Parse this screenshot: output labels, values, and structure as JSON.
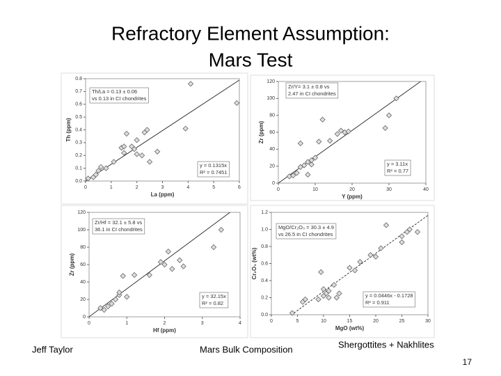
{
  "slide": {
    "title": [
      "Refractory Element Assumption:",
      "Mars Test"
    ],
    "footer_left": "Jeff Taylor",
    "footer_center": "Mars Bulk Composition",
    "footer_right": "Shergottites + Nakhlites",
    "page_number": "17"
  },
  "chart_data": [
    {
      "type": "scatter",
      "xlabel": "La (ppm)",
      "ylabel": "Th (ppm)",
      "x": [
        0.1,
        0.3,
        0.4,
        0.5,
        0.6,
        0.8,
        1.1,
        1.4,
        1.5,
        1.5,
        1.6,
        1.8,
        1.9,
        2.0,
        2.0,
        2.2,
        2.3,
        2.4,
        2.5,
        2.8,
        3.9,
        4.1,
        5.9
      ],
      "values": [
        0.02,
        0.03,
        0.05,
        0.08,
        0.11,
        0.1,
        0.15,
        0.26,
        0.27,
        0.22,
        0.37,
        0.27,
        0.25,
        0.32,
        0.21,
        0.2,
        0.38,
        0.4,
        0.15,
        0.23,
        0.41,
        0.76,
        0.61
      ],
      "xlim": [
        0,
        6
      ],
      "xticks": [
        0,
        1,
        2,
        3,
        4,
        5,
        6
      ],
      "ylim": [
        0,
        0.8
      ],
      "yticks": [
        {
          "value": 0,
          "label": "0.0"
        },
        0.1,
        0.2,
        0.3,
        0.4,
        0.5,
        0.6,
        0.7,
        0.8
      ],
      "annotation": [
        "Th/La = 0.13 ± 0.06",
        "vs 0.13 in CI chondrites"
      ],
      "fit_label": [
        "y = 0.1315x",
        "R² = 0.7451"
      ],
      "trendline": {
        "slope": 0.1315,
        "dashed": false
      }
    },
    {
      "type": "scatter",
      "xlabel": "Y (ppm)",
      "ylabel": "Zr (ppm)",
      "x": [
        3,
        4,
        5,
        6,
        6,
        7,
        8,
        8,
        9,
        9,
        10,
        11,
        12,
        14,
        16,
        17,
        18,
        19,
        29,
        30,
        32
      ],
      "values": [
        8,
        9,
        12,
        19,
        47,
        21,
        25,
        10,
        22,
        27,
        30,
        49,
        75,
        50,
        58,
        62,
        60,
        61,
        65,
        80,
        100
      ],
      "xlim": [
        0,
        40
      ],
      "xticks": [
        0,
        10,
        20,
        30,
        40
      ],
      "ylim": [
        0,
        120
      ],
      "yticks": [
        0,
        20,
        40,
        60,
        80,
        100,
        120
      ],
      "annotation": [
        "Zr/Y= 3.1 ± 0.8 vs",
        "2.47 in CI chondrites"
      ],
      "fit_label": [
        "y = 3.11x",
        "R² = 0.77"
      ],
      "trendline": {
        "slope": 3.11,
        "dashed": false
      }
    },
    {
      "type": "scatter",
      "xlabel": "Hf (ppm)",
      "ylabel": "Zr (ppm)",
      "x": [
        0.3,
        0.4,
        0.5,
        0.6,
        0.7,
        0.8,
        0.8,
        0.9,
        1.0,
        1.2,
        1.6,
        1.9,
        2.0,
        2.1,
        2.2,
        2.4,
        2.5,
        3.3,
        3.5
      ],
      "values": [
        10,
        8,
        12,
        15,
        20,
        25,
        28,
        47,
        23,
        48,
        48,
        63,
        60,
        75,
        55,
        65,
        58,
        80,
        100
      ],
      "xlim": [
        0,
        4
      ],
      "xticks": [
        0,
        1,
        2,
        3,
        4
      ],
      "ylim": [
        0,
        120
      ],
      "yticks": [
        0,
        20,
        40,
        60,
        80,
        100,
        120
      ],
      "annotation": [
        "Zr/Hf = 32.1 ± 5.8 vs",
        "36.1 in CI chondrites"
      ],
      "fit_label": [
        "y = 32.15x",
        "R² = 0.82"
      ],
      "trendline": {
        "slope": 32.15,
        "dashed": false
      }
    },
    {
      "type": "scatter",
      "xlabel": "MgO (wt%)",
      "ylabel": "Cr₂O₃ (wt%)",
      "x": [
        4,
        6,
        6.5,
        9,
        9.5,
        10,
        10,
        10.5,
        11,
        11,
        12,
        12.5,
        13,
        15,
        16,
        17,
        19,
        20,
        21,
        22,
        25,
        25,
        26,
        26.5,
        28
      ],
      "values": [
        0.02,
        0.15,
        0.18,
        0.18,
        0.5,
        0.22,
        0.3,
        0.25,
        0.28,
        0.2,
        0.35,
        0.2,
        0.25,
        0.55,
        0.52,
        0.62,
        0.7,
        0.68,
        0.78,
        1.05,
        0.85,
        0.92,
        0.97,
        1.0,
        0.97
      ],
      "xlim": [
        0,
        30
      ],
      "xticks": [
        0,
        5,
        10,
        15,
        20,
        25,
        30
      ],
      "ylim": [
        0,
        1.2
      ],
      "yticks": [
        {
          "value": 0,
          "label": "0.0"
        },
        0.2,
        0.4,
        0.6,
        0.8,
        {
          "value": 1,
          "label": "1.0"
        },
        1.2
      ],
      "annotation": [
        "MgO/Cr₂O₃ = 30.3 ± 4.9",
        "vs 26.5 in CI chondrites"
      ],
      "fit_label": [
        "y = 0.0446x - 0.1728",
        "R² = 0.911"
      ],
      "trendline": {
        "slope": 0.0446,
        "intercept": -0.1728,
        "dashed": true
      }
    }
  ]
}
